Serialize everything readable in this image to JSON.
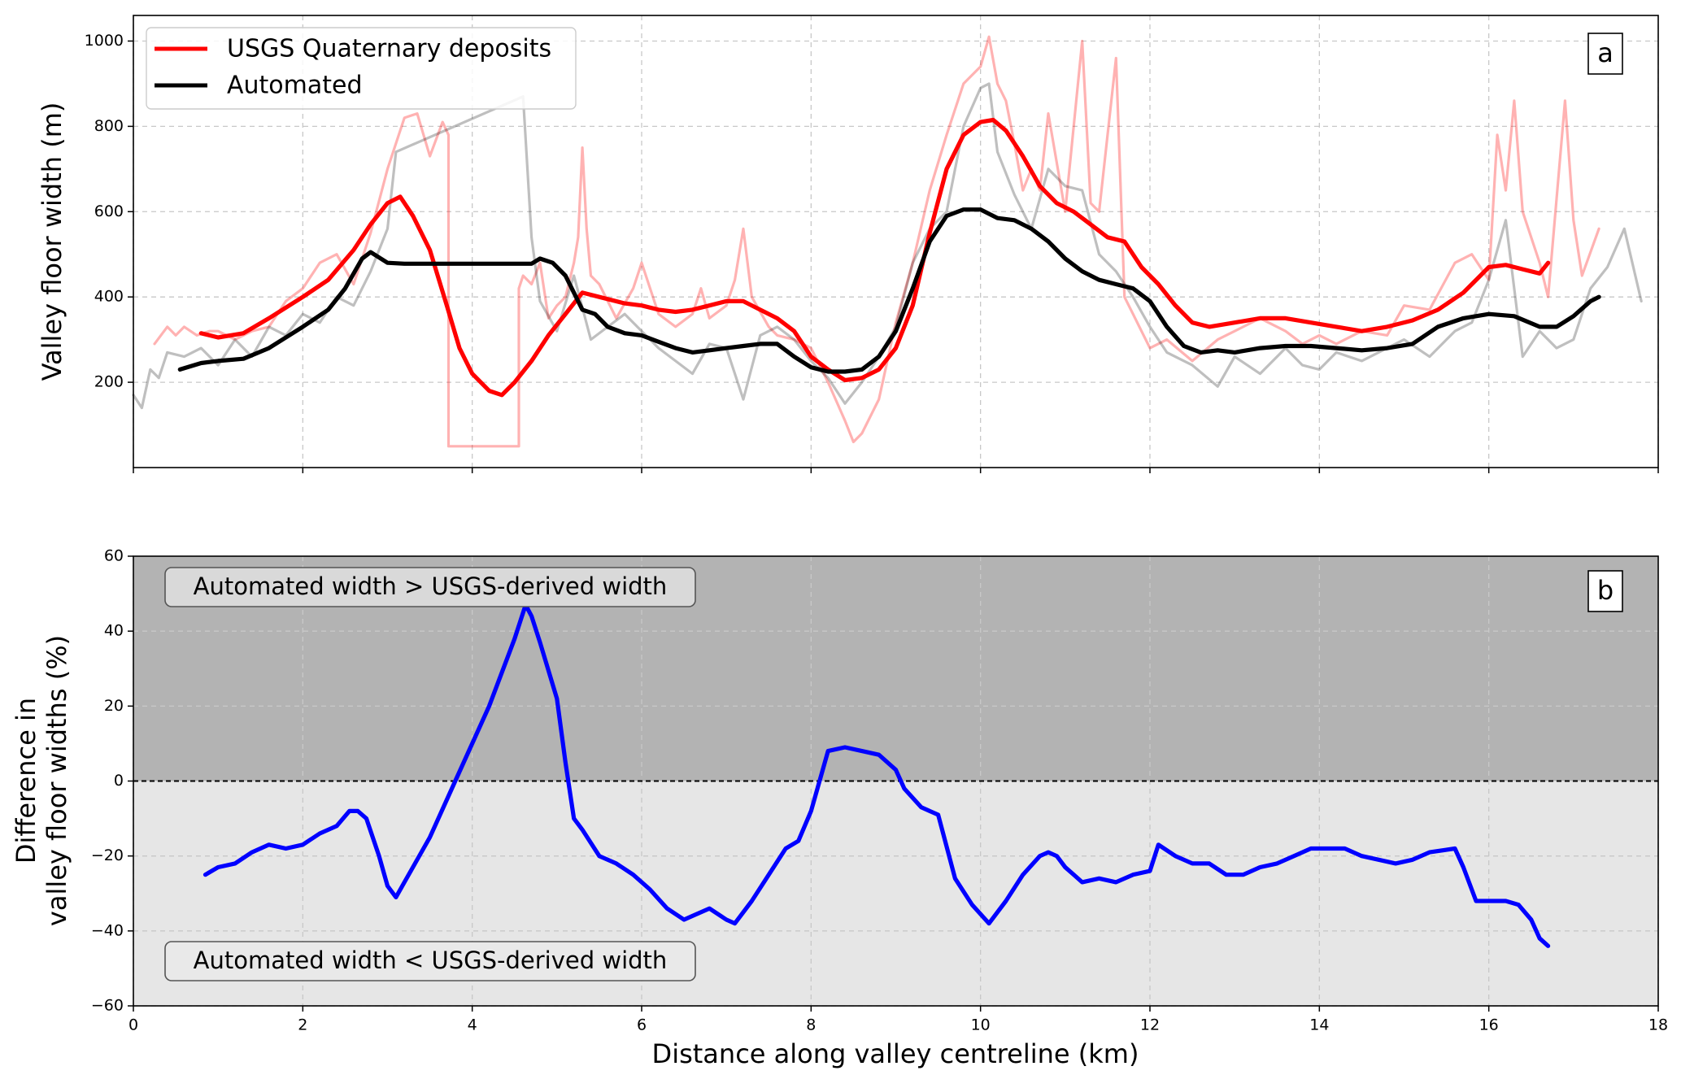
{
  "chart_data": [
    {
      "type": "line",
      "panel_label": "a",
      "ylabel": "Valley floor width (m)",
      "xlim": [
        0,
        18
      ],
      "ylim": [
        0,
        1060
      ],
      "x_ticks": [
        0,
        2,
        4,
        6,
        8,
        10,
        12,
        14,
        16,
        18
      ],
      "y_ticks": [
        200,
        400,
        600,
        800,
        1000
      ],
      "y_tick_labels": [
        "200",
        "400",
        "600",
        "800",
        "1000"
      ],
      "grid": true,
      "legend_position": "top-left",
      "legend": [
        {
          "label": "USGS Quaternary deposits",
          "color": "#ff0000"
        },
        {
          "label": "Automated",
          "color": "#000000"
        }
      ],
      "series": [
        {
          "name": "USGS Quaternary deposits",
          "style": "raw",
          "color": "#ff0000",
          "opacity": 0.3,
          "x": [
            0.25,
            0.4,
            0.5,
            0.6,
            0.75,
            0.9,
            1.0,
            1.2,
            1.4,
            1.6,
            1.8,
            2.0,
            2.2,
            2.4,
            2.6,
            2.8,
            3.0,
            3.2,
            3.35,
            3.5,
            3.65,
            3.72,
            3.72,
            4.55,
            4.55,
            4.6,
            4.7,
            4.8,
            4.9,
            5.0,
            5.1,
            5.2,
            5.25,
            5.3,
            5.35,
            5.4,
            5.5,
            5.7,
            5.9,
            6.0,
            6.2,
            6.4,
            6.6,
            6.7,
            6.8,
            7.0,
            7.1,
            7.2,
            7.3,
            7.5,
            7.6,
            7.8,
            8.0,
            8.2,
            8.4,
            8.5,
            8.6,
            8.8,
            9.0,
            9.2,
            9.4,
            9.6,
            9.8,
            10.0,
            10.1,
            10.2,
            10.3,
            10.4,
            10.5,
            10.6,
            10.7,
            10.8,
            11.0,
            11.2,
            11.3,
            11.4,
            11.6,
            11.7,
            11.8,
            12.0,
            12.2,
            12.5,
            12.8,
            13.0,
            13.3,
            13.6,
            13.8,
            14.0,
            14.2,
            14.5,
            14.8,
            15.0,
            15.3,
            15.6,
            15.8,
            16.0,
            16.1,
            16.2,
            16.3,
            16.4,
            16.6,
            16.7,
            16.9,
            17.0,
            17.1,
            17.3
          ],
          "y": [
            290,
            330,
            310,
            330,
            310,
            320,
            320,
            300,
            320,
            330,
            390,
            420,
            480,
            500,
            430,
            550,
            700,
            820,
            830,
            730,
            810,
            780,
            50,
            50,
            420,
            450,
            430,
            480,
            350,
            380,
            400,
            480,
            540,
            750,
            560,
            450,
            430,
            350,
            420,
            480,
            360,
            330,
            360,
            420,
            350,
            380,
            440,
            560,
            400,
            330,
            310,
            300,
            280,
            200,
            110,
            60,
            80,
            160,
            340,
            480,
            650,
            780,
            900,
            940,
            1010,
            900,
            860,
            760,
            650,
            700,
            650,
            830,
            600,
            1000,
            620,
            600,
            960,
            400,
            360,
            280,
            300,
            250,
            300,
            320,
            350,
            320,
            290,
            310,
            290,
            320,
            310,
            380,
            370,
            480,
            500,
            440,
            780,
            650,
            860,
            600,
            480,
            400,
            860,
            580,
            450,
            560
          ]
        },
        {
          "name": "Automated",
          "style": "raw",
          "color": "#000000",
          "opacity": 0.25,
          "x": [
            0.0,
            0.1,
            0.2,
            0.3,
            0.4,
            0.6,
            0.8,
            1.0,
            1.2,
            1.4,
            1.6,
            1.8,
            2.0,
            2.2,
            2.4,
            2.6,
            2.8,
            3.0,
            3.1,
            4.6,
            4.7,
            4.8,
            5.0,
            5.2,
            5.4,
            5.6,
            5.8,
            6.0,
            6.2,
            6.4,
            6.6,
            6.8,
            7.0,
            7.2,
            7.4,
            7.6,
            7.8,
            8.0,
            8.2,
            8.4,
            8.6,
            8.8,
            9.0,
            9.2,
            9.4,
            9.6,
            9.8,
            10.0,
            10.1,
            10.2,
            10.4,
            10.6,
            10.8,
            11.0,
            11.2,
            11.4,
            11.6,
            11.8,
            12.0,
            12.2,
            12.5,
            12.8,
            13.0,
            13.3,
            13.6,
            13.8,
            14.0,
            14.2,
            14.5,
            14.8,
            15.0,
            15.3,
            15.6,
            15.8,
            16.0,
            16.2,
            16.4,
            16.6,
            16.8,
            17.0,
            17.2,
            17.4,
            17.6,
            17.8
          ],
          "y": [
            170,
            140,
            230,
            210,
            270,
            260,
            280,
            240,
            300,
            260,
            330,
            310,
            360,
            340,
            400,
            380,
            460,
            560,
            740,
            870,
            540,
            390,
            320,
            450,
            300,
            330,
            360,
            320,
            280,
            250,
            220,
            290,
            280,
            160,
            310,
            330,
            300,
            250,
            210,
            150,
            200,
            260,
            330,
            480,
            560,
            600,
            800,
            890,
            900,
            740,
            640,
            560,
            700,
            660,
            650,
            500,
            460,
            400,
            330,
            270,
            240,
            190,
            260,
            220,
            280,
            240,
            230,
            270,
            250,
            280,
            300,
            260,
            320,
            340,
            440,
            580,
            260,
            320,
            280,
            300,
            420,
            470,
            560,
            390
          ]
        },
        {
          "name": "USGS Quaternary deposits",
          "style": "smoothed",
          "color": "#ff0000",
          "opacity": 1,
          "x": [
            0.8,
            1.0,
            1.3,
            1.6,
            2.0,
            2.3,
            2.6,
            2.8,
            3.0,
            3.15,
            3.3,
            3.5,
            3.7,
            3.85,
            4.0,
            4.2,
            4.35,
            4.5,
            4.7,
            4.9,
            5.1,
            5.3,
            5.5,
            5.8,
            6.0,
            6.2,
            6.4,
            6.6,
            6.8,
            7.0,
            7.2,
            7.4,
            7.6,
            7.8,
            8.0,
            8.2,
            8.4,
            8.6,
            8.8,
            9.0,
            9.2,
            9.4,
            9.6,
            9.8,
            10.0,
            10.15,
            10.3,
            10.5,
            10.7,
            10.9,
            11.1,
            11.3,
            11.5,
            11.7,
            11.9,
            12.1,
            12.3,
            12.5,
            12.7,
            13.0,
            13.3,
            13.6,
            13.9,
            14.2,
            14.5,
            14.8,
            15.1,
            15.4,
            15.7,
            15.9,
            16.0,
            16.2,
            16.4,
            16.6,
            16.7
          ],
          "y": [
            315,
            305,
            315,
            350,
            400,
            440,
            510,
            570,
            620,
            635,
            590,
            510,
            380,
            280,
            220,
            180,
            170,
            200,
            250,
            310,
            360,
            410,
            400,
            385,
            380,
            370,
            365,
            370,
            380,
            390,
            390,
            370,
            350,
            320,
            260,
            230,
            205,
            210,
            230,
            280,
            380,
            550,
            700,
            780,
            810,
            815,
            790,
            730,
            660,
            620,
            600,
            570,
            540,
            530,
            470,
            430,
            380,
            340,
            330,
            340,
            350,
            350,
            340,
            330,
            320,
            330,
            345,
            370,
            410,
            450,
            470,
            475,
            465,
            455,
            480
          ]
        },
        {
          "name": "Automated",
          "style": "smoothed",
          "color": "#000000",
          "opacity": 1,
          "x": [
            0.55,
            0.8,
            1.0,
            1.3,
            1.6,
            2.0,
            2.3,
            2.5,
            2.7,
            2.8,
            3.0,
            3.2,
            4.0,
            4.7,
            4.8,
            4.95,
            5.1,
            5.3,
            5.45,
            5.6,
            5.8,
            6.0,
            6.2,
            6.4,
            6.6,
            6.8,
            7.0,
            7.2,
            7.4,
            7.6,
            7.8,
            8.0,
            8.2,
            8.4,
            8.6,
            8.8,
            9.0,
            9.2,
            9.4,
            9.6,
            9.8,
            10.0,
            10.2,
            10.4,
            10.6,
            10.8,
            11.0,
            11.2,
            11.4,
            11.6,
            11.8,
            12.0,
            12.2,
            12.4,
            12.6,
            12.8,
            13.0,
            13.3,
            13.6,
            13.9,
            14.2,
            14.5,
            14.8,
            15.1,
            15.4,
            15.7,
            16.0,
            16.3,
            16.6,
            16.8,
            17.0,
            17.2,
            17.3
          ],
          "y": [
            230,
            245,
            250,
            255,
            280,
            330,
            370,
            420,
            490,
            505,
            480,
            478,
            478,
            478,
            490,
            480,
            450,
            370,
            360,
            330,
            315,
            310,
            295,
            280,
            270,
            275,
            280,
            285,
            290,
            290,
            260,
            235,
            225,
            225,
            230,
            260,
            320,
            420,
            530,
            590,
            605,
            605,
            585,
            580,
            560,
            530,
            490,
            460,
            440,
            430,
            420,
            390,
            330,
            285,
            270,
            275,
            270,
            280,
            285,
            285,
            280,
            275,
            280,
            290,
            330,
            350,
            360,
            355,
            330,
            330,
            355,
            390,
            400
          ]
        }
      ]
    },
    {
      "type": "line",
      "panel_label": "b",
      "xlabel": "Distance along valley centreline (km)",
      "ylabel": [
        "Difference in",
        "valley floor widths (%)"
      ],
      "xlim": [
        0,
        18
      ],
      "ylim": [
        -60,
        60
      ],
      "x_ticks": [
        0,
        2,
        4,
        6,
        8,
        10,
        12,
        14,
        16,
        18
      ],
      "x_tick_labels": [
        "0",
        "2",
        "4",
        "6",
        "8",
        "10",
        "12",
        "14",
        "16",
        "18"
      ],
      "y_ticks": [
        -60,
        -40,
        -20,
        0,
        20,
        40,
        60
      ],
      "y_tick_labels": [
        "−60",
        "−40",
        "−20",
        "0",
        "20",
        "40",
        "60"
      ],
      "grid": true,
      "zero_line": true,
      "shaded_regions": [
        {
          "from": 0,
          "to": 60,
          "color": "#b3b3b3"
        },
        {
          "from": -60,
          "to": 0,
          "color": "#e6e6e6"
        }
      ],
      "annotations": [
        {
          "text": "Automated width > USGS-derived width",
          "position": "upper-left"
        },
        {
          "text": "Automated width < USGS-derived width",
          "position": "lower-left"
        }
      ],
      "series": [
        {
          "name": "",
          "color": "#0000ff",
          "x": [
            0.85,
            1.0,
            1.2,
            1.4,
            1.6,
            1.8,
            2.0,
            2.2,
            2.4,
            2.55,
            2.65,
            2.75,
            2.9,
            3.0,
            3.1,
            3.2,
            3.5,
            3.8,
            4.2,
            4.5,
            4.63,
            4.7,
            4.8,
            5.0,
            5.1,
            5.2,
            5.3,
            5.5,
            5.7,
            5.9,
            6.1,
            6.3,
            6.5,
            6.6,
            6.8,
            7.0,
            7.1,
            7.3,
            7.5,
            7.7,
            7.85,
            8.0,
            8.2,
            8.4,
            8.6,
            8.8,
            9.0,
            9.1,
            9.3,
            9.5,
            9.7,
            9.9,
            10.1,
            10.3,
            10.5,
            10.7,
            10.8,
            10.9,
            11.0,
            11.1,
            11.2,
            11.4,
            11.6,
            11.8,
            12.0,
            12.1,
            12.3,
            12.5,
            12.7,
            12.9,
            13.1,
            13.3,
            13.5,
            13.7,
            13.9,
            14.1,
            14.3,
            14.5,
            14.7,
            14.9,
            15.1,
            15.3,
            15.6,
            15.7,
            15.85,
            16.0,
            16.2,
            16.35,
            16.5,
            16.6,
            16.7
          ],
          "y": [
            -25,
            -23,
            -22,
            -19,
            -17,
            -18,
            -17,
            -14,
            -12,
            -8,
            -8,
            -10,
            -20,
            -28,
            -31,
            -27,
            -15,
            0,
            20,
            38,
            47,
            44,
            37,
            22,
            5,
            -10,
            -13,
            -20,
            -22,
            -25,
            -29,
            -34,
            -37,
            -36,
            -34,
            -37,
            -38,
            -32,
            -25,
            -18,
            -16,
            -8,
            8,
            9,
            8,
            7,
            3,
            -2,
            -7,
            -9,
            -26,
            -33,
            -38,
            -32,
            -25,
            -20,
            -19,
            -20,
            -23,
            -25,
            -27,
            -26,
            -27,
            -25,
            -24,
            -17,
            -20,
            -22,
            -22,
            -25,
            -25,
            -23,
            -22,
            -20,
            -18,
            -18,
            -18,
            -20,
            -21,
            -22,
            -21,
            -19,
            -18,
            -23,
            -32,
            -32,
            -32,
            -33,
            -37,
            -42,
            -44
          ]
        }
      ]
    }
  ]
}
